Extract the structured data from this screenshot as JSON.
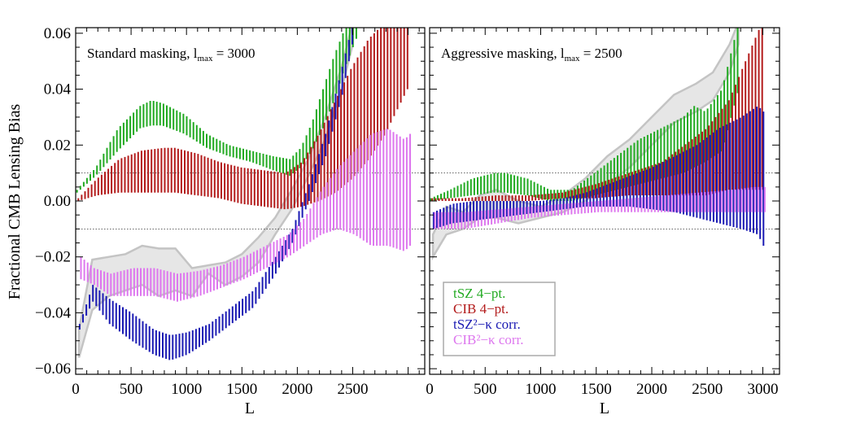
{
  "figure": {
    "ylabel": "Fractional CMB Lensing Bias",
    "xlabel_left": "L",
    "xlabel_right": "L"
  },
  "chart_data": [
    {
      "type": "line",
      "title_main": "Standard masking, l",
      "title_sub": "max",
      "title_tail": " = 3000",
      "xlim": [
        0,
        3150
      ],
      "ylim": [
        -0.062,
        0.062
      ],
      "xticks": [
        0,
        500,
        1000,
        1500,
        2000,
        2500
      ],
      "xtick_labels": [
        "0",
        "500",
        "1000",
        "1500",
        "2000",
        "2500"
      ],
      "yticks": [
        -0.06,
        -0.04,
        -0.02,
        0.0,
        0.02,
        0.04,
        0.06
      ],
      "ytick_labels": [
        "−0.06",
        "−0.04",
        "−0.02",
        "0.00",
        "0.02",
        "0.04",
        "0.06"
      ],
      "reference_lines": [
        0.01,
        -0.01
      ],
      "band": {
        "x": [
          30,
          150,
          300,
          450,
          600,
          750,
          900,
          1050,
          1200,
          1350,
          1500,
          1650,
          1800,
          1950,
          2100,
          2250,
          2400,
          2500
        ],
        "upper": [
          -0.046,
          -0.021,
          -0.02,
          -0.019,
          -0.016,
          -0.017,
          -0.017,
          -0.024,
          -0.023,
          -0.022,
          -0.019,
          -0.013,
          -0.006,
          0.004,
          0.015,
          0.03,
          0.048,
          0.064
        ],
        "lower": [
          -0.056,
          -0.039,
          -0.034,
          -0.032,
          -0.03,
          -0.034,
          -0.032,
          -0.034,
          -0.026,
          -0.03,
          -0.027,
          -0.022,
          -0.012,
          -0.003,
          0.009,
          0.022,
          0.04,
          0.056
        ]
      },
      "series": [
        {
          "name": "tSZ 4−pt.",
          "color": "#22aa22",
          "x": [
            30,
            200,
            400,
            600,
            700,
            800,
            1000,
            1200,
            1400,
            1600,
            1800,
            1950,
            2050,
            2150,
            2250,
            2350,
            2450,
            2550
          ],
          "upper": [
            0.004,
            0.012,
            0.026,
            0.034,
            0.036,
            0.035,
            0.031,
            0.024,
            0.02,
            0.018,
            0.016,
            0.015,
            0.019,
            0.028,
            0.04,
            0.052,
            0.062,
            0.064
          ],
          "lower": [
            0.003,
            0.009,
            0.018,
            0.026,
            0.027,
            0.027,
            0.024,
            0.019,
            0.016,
            0.014,
            0.011,
            0.009,
            0.012,
            0.018,
            0.026,
            0.036,
            0.048,
            0.058
          ]
        },
        {
          "name": "CIB 4−pt.",
          "color": "#b31b1b",
          "x": [
            30,
            200,
            400,
            600,
            800,
            900,
            1100,
            1300,
            1500,
            1700,
            1900,
            2050,
            2200,
            2350,
            2500,
            2650,
            2800,
            2950,
            3000
          ],
          "upper": [
            0.001,
            0.008,
            0.015,
            0.018,
            0.019,
            0.019,
            0.017,
            0.014,
            0.012,
            0.011,
            0.01,
            0.014,
            0.024,
            0.036,
            0.048,
            0.058,
            0.064,
            0.064,
            0.064
          ],
          "lower": [
            0.0,
            0.002,
            0.003,
            0.003,
            0.003,
            0.003,
            0.002,
            0.001,
            -0.001,
            -0.002,
            -0.003,
            -0.002,
            0.0,
            0.003,
            0.008,
            0.015,
            0.024,
            0.036,
            0.04
          ]
        },
        {
          "name": "tSZ²−κ corr.",
          "color": "#1a1ab3",
          "x": [
            30,
            150,
            300,
            500,
            700,
            850,
            1000,
            1200,
            1400,
            1600,
            1800,
            1950,
            2100,
            2250,
            2400,
            2500
          ],
          "upper": [
            -0.044,
            -0.03,
            -0.035,
            -0.04,
            -0.046,
            -0.048,
            -0.047,
            -0.044,
            -0.038,
            -0.032,
            -0.02,
            -0.01,
            0.006,
            0.024,
            0.048,
            0.064
          ],
          "lower": [
            -0.046,
            -0.036,
            -0.044,
            -0.05,
            -0.055,
            -0.057,
            -0.055,
            -0.05,
            -0.044,
            -0.038,
            -0.026,
            -0.015,
            0.0,
            0.016,
            0.038,
            0.058
          ]
        },
        {
          "name": "CIB²−κ corr.",
          "color": "#dd77ee",
          "x": [
            30,
            150,
            300,
            500,
            700,
            900,
            1100,
            1300,
            1500,
            1700,
            1900,
            2050,
            2200,
            2350,
            2500,
            2650,
            2800,
            2950,
            3000
          ],
          "upper": [
            -0.02,
            -0.024,
            -0.026,
            -0.024,
            -0.024,
            -0.026,
            -0.025,
            -0.023,
            -0.02,
            -0.016,
            -0.012,
            -0.006,
            0.004,
            0.012,
            0.018,
            0.024,
            0.026,
            0.022,
            0.024
          ],
          "lower": [
            -0.028,
            -0.03,
            -0.034,
            -0.034,
            -0.034,
            -0.036,
            -0.034,
            -0.031,
            -0.028,
            -0.024,
            -0.02,
            -0.016,
            -0.012,
            -0.01,
            -0.012,
            -0.016,
            -0.016,
            -0.018,
            -0.016
          ]
        }
      ]
    },
    {
      "type": "line",
      "title_main": "Aggressive masking, l",
      "title_sub": "max",
      "title_tail": " = 2500",
      "xlim": [
        0,
        3150
      ],
      "ylim": [
        -0.062,
        0.062
      ],
      "xticks": [
        0,
        500,
        1000,
        1500,
        2000,
        2500,
        3000
      ],
      "xtick_labels": [
        "0",
        "500",
        "1000",
        "1500",
        "2000",
        "2500",
        "3000"
      ],
      "yticks": [
        -0.06,
        -0.04,
        -0.02,
        0.0,
        0.02,
        0.04,
        0.06
      ],
      "reference_lines": [
        0.01,
        -0.01
      ],
      "band": {
        "x": [
          30,
          150,
          300,
          450,
          600,
          800,
          1000,
          1200,
          1400,
          1600,
          1800,
          2000,
          2200,
          2400,
          2550,
          2700,
          2780
        ],
        "upper": [
          -0.012,
          -0.002,
          -0.004,
          0.002,
          0.004,
          0.0,
          -0.002,
          0.002,
          0.008,
          0.016,
          0.022,
          0.03,
          0.038,
          0.042,
          0.046,
          0.056,
          0.064
        ],
        "lower": [
          -0.02,
          -0.012,
          -0.01,
          -0.006,
          -0.006,
          -0.008,
          -0.006,
          -0.004,
          0.0,
          0.006,
          0.012,
          0.02,
          0.028,
          0.032,
          0.036,
          0.046,
          0.056
        ]
      },
      "series": [
        {
          "name": "tSZ 4−pt.",
          "color": "#22aa22",
          "x": [
            30,
            200,
            400,
            600,
            700,
            900,
            1100,
            1300,
            1500,
            1700,
            1900,
            2100,
            2300,
            2400,
            2500,
            2650,
            2800
          ],
          "upper": [
            0.001,
            0.004,
            0.008,
            0.01,
            0.01,
            0.008,
            0.004,
            0.004,
            0.01,
            0.016,
            0.022,
            0.026,
            0.03,
            0.034,
            0.032,
            0.04,
            0.064
          ],
          "lower": [
            0.0,
            0.001,
            0.002,
            0.003,
            0.003,
            0.002,
            0.0,
            0.0,
            0.002,
            0.004,
            0.006,
            0.008,
            0.01,
            0.012,
            0.014,
            0.018,
            0.04
          ]
        },
        {
          "name": "CIB 4−pt.",
          "color": "#b31b1b",
          "x": [
            30,
            300,
            600,
            900,
            1200,
            1500,
            1800,
            2100,
            2300,
            2500,
            2700,
            2850,
            3000
          ],
          "upper": [
            0.001,
            0.001,
            0.002,
            0.002,
            0.003,
            0.006,
            0.01,
            0.014,
            0.02,
            0.026,
            0.036,
            0.05,
            0.064
          ],
          "lower": [
            0.0,
            0.0,
            0.0,
            0.0,
            0.001,
            0.001,
            0.002,
            0.002,
            0.002,
            0.002,
            0.004,
            0.004,
            0.004
          ]
        },
        {
          "name": "tSZ²−κ corr.",
          "color": "#1a1ab3",
          "x": [
            30,
            200,
            400,
            600,
            800,
            1000,
            1200,
            1400,
            1600,
            1800,
            2000,
            2200,
            2400,
            2600,
            2800,
            2950,
            3000
          ],
          "upper": [
            -0.004,
            -0.001,
            0.0,
            0.0,
            0.0,
            0.0,
            0.001,
            0.003,
            0.006,
            0.009,
            0.012,
            0.016,
            0.02,
            0.026,
            0.03,
            0.034,
            0.032
          ],
          "lower": [
            -0.01,
            -0.008,
            -0.007,
            -0.006,
            -0.005,
            -0.004,
            -0.003,
            -0.002,
            -0.002,
            -0.002,
            -0.003,
            -0.004,
            -0.006,
            -0.008,
            -0.01,
            -0.012,
            -0.016
          ]
        },
        {
          "name": "CIB²−κ corr.",
          "color": "#dd77ee",
          "x": [
            30,
            300,
            600,
            900,
            1200,
            1500,
            1800,
            2100,
            2400,
            2700,
            2900,
            3000
          ],
          "upper": [
            -0.004,
            -0.004,
            -0.003,
            -0.002,
            -0.001,
            0.0,
            0.001,
            0.002,
            0.003,
            0.004,
            0.005,
            0.005
          ],
          "lower": [
            -0.01,
            -0.01,
            -0.008,
            -0.006,
            -0.005,
            -0.004,
            -0.004,
            -0.004,
            -0.004,
            -0.004,
            -0.004,
            -0.004
          ]
        }
      ]
    }
  ],
  "legend": {
    "items": [
      {
        "text": "tSZ 4−pt.",
        "color": "#22aa22"
      },
      {
        "text": "CIB 4−pt.",
        "color": "#b31b1b"
      },
      {
        "text": "tSZ²−κ corr.",
        "color": "#1a1ab3"
      },
      {
        "text": "CIB²−κ corr.",
        "color": "#dd77ee"
      }
    ]
  },
  "colors": {
    "band_fill": "#e6e6e6",
    "band_edge": "#c4c4c4",
    "reference_line": "#333333",
    "axes": "#000000"
  }
}
